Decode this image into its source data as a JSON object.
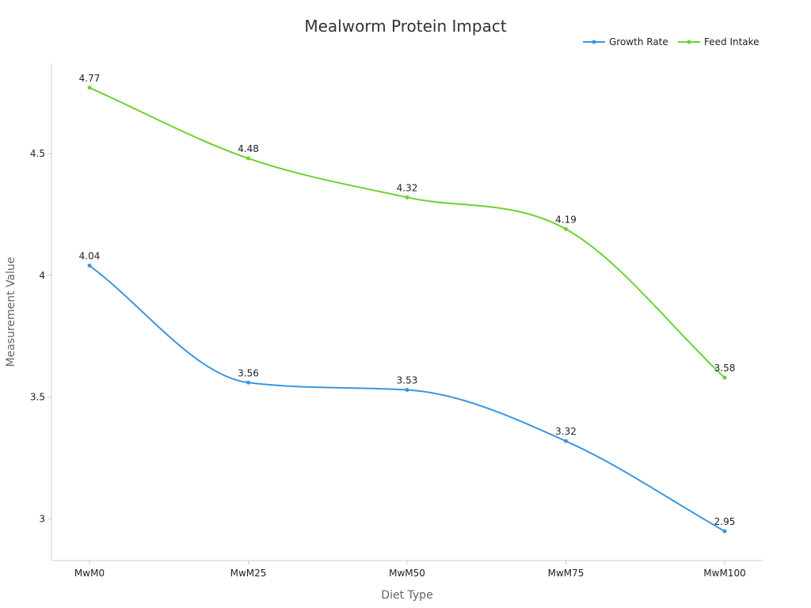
{
  "chart_data": {
    "type": "line",
    "title": "Mealworm Protein Impact",
    "xlabel": "Diet Type",
    "ylabel": "Measurement Value",
    "categories": [
      "MwM0",
      "MwM25",
      "MwM50",
      "MwM75",
      "MwM100"
    ],
    "ylim": [
      2.83,
      4.87
    ],
    "yticks": [
      3,
      3.5,
      4,
      4.5
    ],
    "ytick_labels": [
      "3",
      "3.5",
      "4",
      "4.5"
    ],
    "grid": false,
    "legend_position": "top-right",
    "series": [
      {
        "name": "Growth Rate",
        "color": "#3a96e0",
        "values": [
          4.04,
          3.56,
          3.53,
          3.32,
          2.95
        ],
        "labels": [
          "4.04",
          "3.56",
          "3.53",
          "3.32",
          "2.95"
        ]
      },
      {
        "name": "Feed Intake",
        "color": "#6dd130",
        "values": [
          4.77,
          4.48,
          4.32,
          4.19,
          3.58
        ],
        "labels": [
          "4.77",
          "4.48",
          "4.32",
          "4.19",
          "3.58"
        ]
      }
    ]
  }
}
